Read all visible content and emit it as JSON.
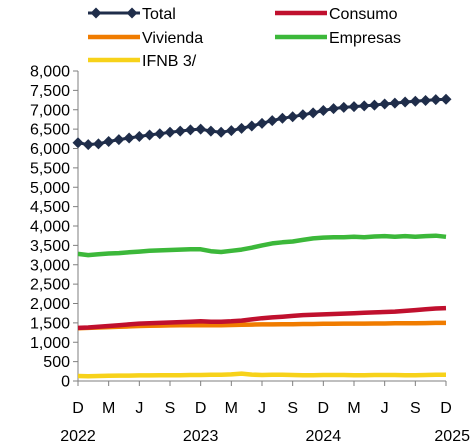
{
  "chart_data": {
    "type": "line",
    "title": "",
    "xlabel": "",
    "ylabel": "",
    "ylim": [
      0,
      8000
    ],
    "yticks": [
      0,
      500,
      1000,
      1500,
      2000,
      2500,
      3000,
      3500,
      4000,
      4500,
      5000,
      5500,
      6000,
      6500,
      7000,
      7500,
      8000
    ],
    "ytick_labels": [
      "0",
      "500",
      "1,000",
      "1,500",
      "2,000",
      "2,500",
      "3,000",
      "3,500",
      "4,000",
      "4,500",
      "5,000",
      "5,500",
      "6,000",
      "6,500",
      "7,000",
      "7,500",
      "8,000"
    ],
    "x": [
      "Dec 2022",
      "Jan 2023",
      "Feb 2023",
      "Mar 2023",
      "Apr 2023",
      "May 2023",
      "Jun 2023",
      "Jul 2023",
      "Aug 2023",
      "Sep 2023",
      "Oct 2023",
      "Nov 2023",
      "Dec 2023",
      "Jan 2024",
      "Feb 2024",
      "Mar 2024",
      "Apr 2024",
      "May 2024",
      "Jun 2024",
      "Jul 2024",
      "Aug 2024",
      "Sep 2024",
      "Oct 2024",
      "Nov 2024",
      "Dec 2024",
      "Jan 2025",
      "Feb 2025",
      "Mar 2025",
      "Apr 2025",
      "May 2025",
      "Jun 2025",
      "Jul 2025",
      "Aug 2025",
      "Sep 2025",
      "Oct 2025",
      "Nov 2025",
      "Dec 2025"
    ],
    "xtick_labels": [
      "D",
      "M",
      "J",
      "S",
      "D",
      "M",
      "J",
      "S",
      "D",
      "M",
      "J",
      "S",
      "D"
    ],
    "xtick_every": 3,
    "year_labels": [
      {
        "text": "2022",
        "index": 0
      },
      {
        "text": "2023",
        "index": 12
      },
      {
        "text": "2024",
        "index": 24
      },
      {
        "text": "2025",
        "index": 36
      }
    ],
    "legend_position": "top",
    "grid": false,
    "series": [
      {
        "name": "Total",
        "color": "#1f2d4a",
        "marker": "diamond",
        "values": [
          6150,
          6100,
          6120,
          6180,
          6230,
          6270,
          6310,
          6350,
          6380,
          6420,
          6450,
          6480,
          6500,
          6450,
          6420,
          6460,
          6520,
          6580,
          6650,
          6720,
          6780,
          6820,
          6870,
          6920,
          6980,
          7030,
          7060,
          7080,
          7100,
          7120,
          7150,
          7170,
          7200,
          7220,
          7240,
          7260,
          7270
        ]
      },
      {
        "name": "Consumo",
        "color": "#c0102e",
        "marker": "none",
        "values": [
          1370,
          1380,
          1400,
          1420,
          1440,
          1460,
          1480,
          1490,
          1500,
          1510,
          1520,
          1530,
          1540,
          1530,
          1530,
          1540,
          1560,
          1590,
          1620,
          1640,
          1660,
          1680,
          1700,
          1710,
          1720,
          1730,
          1740,
          1750,
          1760,
          1770,
          1780,
          1790,
          1810,
          1830,
          1850,
          1870,
          1880
        ]
      },
      {
        "name": "Vivienda",
        "color": "#f07c00",
        "marker": "none",
        "values": [
          1360,
          1370,
          1380,
          1390,
          1400,
          1410,
          1420,
          1425,
          1430,
          1435,
          1440,
          1440,
          1440,
          1440,
          1440,
          1445,
          1450,
          1455,
          1460,
          1460,
          1465,
          1465,
          1470,
          1470,
          1475,
          1475,
          1480,
          1480,
          1480,
          1485,
          1485,
          1490,
          1490,
          1490,
          1495,
          1500,
          1500
        ]
      },
      {
        "name": "Empresas",
        "color": "#3cb83a",
        "marker": "none",
        "values": [
          3280,
          3250,
          3270,
          3290,
          3300,
          3320,
          3340,
          3360,
          3370,
          3380,
          3390,
          3400,
          3400,
          3350,
          3330,
          3360,
          3390,
          3440,
          3500,
          3550,
          3580,
          3600,
          3640,
          3680,
          3700,
          3710,
          3710,
          3720,
          3710,
          3730,
          3740,
          3720,
          3740,
          3720,
          3740,
          3750,
          3720
        ]
      },
      {
        "name": "IFNB 3/",
        "color": "#f7d21a",
        "marker": "none",
        "values": [
          130,
          125,
          130,
          135,
          140,
          140,
          145,
          145,
          150,
          150,
          150,
          155,
          155,
          160,
          160,
          170,
          190,
          165,
          155,
          160,
          160,
          155,
          150,
          150,
          155,
          155,
          155,
          150,
          150,
          155,
          155,
          155,
          150,
          150,
          155,
          160,
          160
        ]
      }
    ]
  }
}
